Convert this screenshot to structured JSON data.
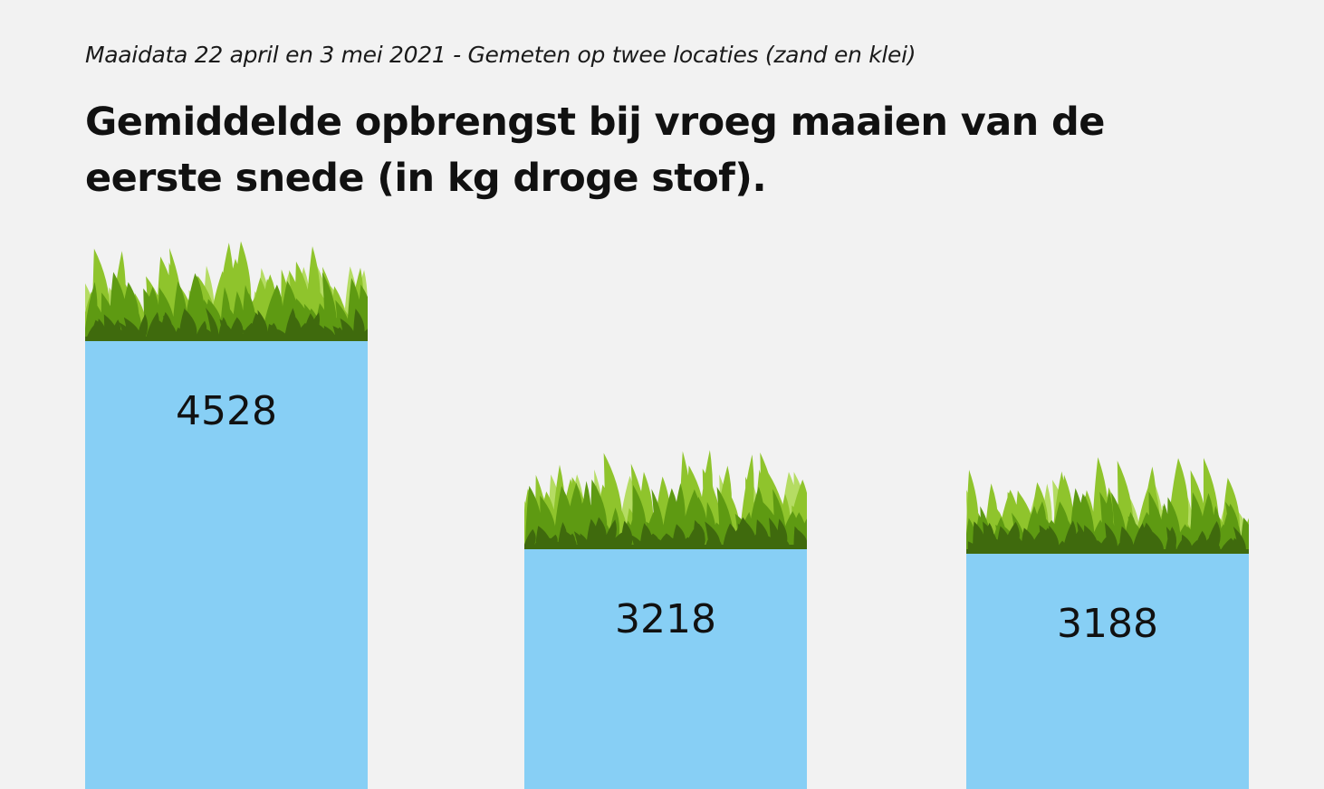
{
  "subtitle": "Maaidata 22 april en 3 mei 2021 - Gemeten op twee locaties (zand en klei)",
  "title": "Gemiddelde opbrengst bij vroeg maaien van de eerste snede (in kg droge stof).",
  "chart_data": {
    "type": "bar",
    "categories": [
      "",
      "",
      ""
    ],
    "values": [
      4528,
      3218,
      3188
    ],
    "title": "Gemiddelde opbrengst bij vroeg maaien van de eerste snede (in kg droge stof).",
    "subtitle": "Maaidata 22 april en 3 mei 2021 - Gemeten op twee locaties (zand en klei)",
    "xlabel": "",
    "ylabel": "",
    "grid": false,
    "legend": "none",
    "data_labels": [
      "4528",
      "3218",
      "3188"
    ]
  },
  "colors": {
    "background": "#f2f2f2",
    "bar": "#87cff5",
    "grass_dark": "#3f6a0d",
    "grass_mid": "#5e9a12",
    "grass_light": "#8fc42c",
    "grass_pale": "#b5dc63",
    "text": "#111111"
  }
}
